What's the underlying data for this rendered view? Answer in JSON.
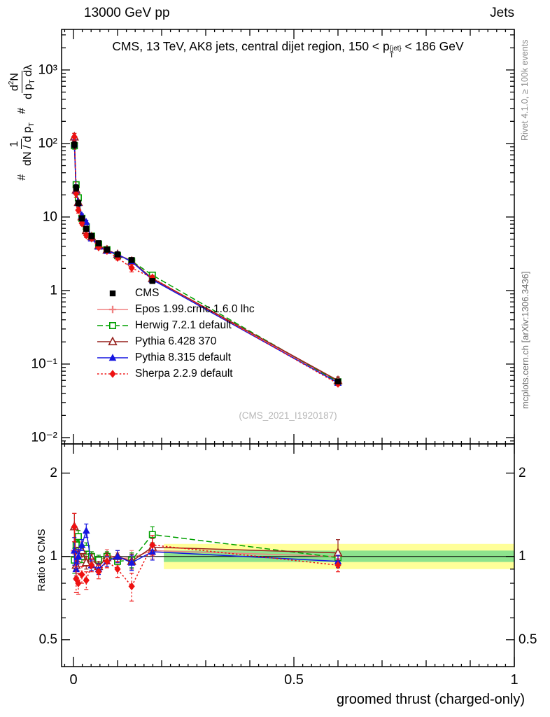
{
  "header": {
    "left": "13000 GeV pp",
    "right": "Jets"
  },
  "title_rich": [
    {
      "t": "CMS, 13 TeV, AK8 jets, central dijet region, 150 < p"
    },
    {
      "stack": [
        "{jet}",
        "T"
      ]
    },
    {
      "t": " < 186 GeV"
    }
  ],
  "ylabel_rich": [
    {
      "t": "# "
    },
    {
      "frac": {
        "num": [
          {
            "t": "1"
          }
        ],
        "den": [
          {
            "t": "dN / d p"
          },
          {
            "t": "T",
            "s": "sub"
          }
        ]
      }
    },
    {
      "t": " # "
    },
    {
      "frac": {
        "num": [
          {
            "t": "d"
          },
          {
            "t": "2",
            "s": "sup"
          },
          {
            "t": "N"
          }
        ],
        "den": [
          {
            "t": "d p"
          },
          {
            "t": "T",
            "s": "sub"
          },
          {
            "t": " dλ"
          }
        ]
      }
    }
  ],
  "ratio_ylabel": "Ratio to CMS",
  "xlabel": "groomed thrust (charged-only)",
  "watermark": "(CMS_2021_I1920187)",
  "side_notes": {
    "top": "Rivet 4.1.0, ≥ 100k events",
    "bottom": "mcplots.cern.ch [arXiv:1306.3436]"
  },
  "axes": {
    "x_ticks": [
      {
        "v": 0,
        "label": "0"
      },
      {
        "v": 0.5,
        "label": "0.5"
      },
      {
        "v": 1,
        "label": "1"
      }
    ],
    "main_y_ticks": [
      {
        "v": 1000,
        "label": "10³"
      },
      {
        "v": 100,
        "label": "10²"
      },
      {
        "v": 10,
        "label": "10"
      },
      {
        "v": 1,
        "label": "1"
      },
      {
        "v": 0.1,
        "label": "10⁻¹"
      },
      {
        "v": 0.01,
        "label": "10⁻²"
      }
    ],
    "ratio_y_ticks": [
      {
        "v": 2,
        "label": "2"
      },
      {
        "v": 1,
        "label": "1"
      },
      {
        "v": 0.5,
        "label": "0.5"
      }
    ]
  },
  "chart_data": {
    "type": "line",
    "title": "CMS, 13 TeV, AK8 jets, central dijet region, 150 < pT^{jet} < 186 GeV",
    "xlabel": "groomed thrust (charged-only)",
    "ylabel": "# 1/(dN/dpT) # d²N/(dpT dλ)",
    "x": [
      0.002,
      0.006,
      0.011,
      0.019,
      0.029,
      0.041,
      0.057,
      0.076,
      0.1,
      0.132,
      0.179,
      0.6
    ],
    "xlim": [
      -0.027,
      1.0
    ],
    "ylim": [
      0.0082,
      3560
    ],
    "ratio_ylim": [
      0.4,
      2.55
    ],
    "y_scale": "log",
    "ratio_y_scale": "log",
    "cms": {
      "name": "CMS",
      "color": "#000000",
      "marker": "square-filled",
      "values": [
        96,
        25,
        15.5,
        9.6,
        6.9,
        5.5,
        4.4,
        3.6,
        3.1,
        2.6,
        1.35,
        0.058
      ],
      "errors": [
        10,
        2.5,
        1.4,
        0.8,
        0.55,
        0.45,
        0.35,
        0.28,
        0.24,
        0.2,
        0.1,
        0.004
      ]
    },
    "series": [
      {
        "name": "Epos 1.99.crmc.1.6.0 lhc",
        "color": "#f08080",
        "line": "solid",
        "marker": "plus",
        "ratio": [
          1.05,
          1.02,
          0.95,
          1.08,
          0.97,
          1.0,
          0.95,
          1.02,
          0.98,
          0.99,
          1.05,
          1.0
        ],
        "ratio_err": [
          0.12,
          0.08,
          0.06,
          0.05,
          0.05,
          0.04,
          0.04,
          0.04,
          0.05,
          0.06,
          0.07,
          0.04
        ]
      },
      {
        "name": "Herwig 7.2.1 default",
        "color": "#00a000",
        "line": "dashed",
        "marker": "square-open",
        "ratio": [
          0.97,
          1.1,
          1.18,
          1.0,
          1.07,
          1.0,
          0.97,
          1.0,
          0.96,
          0.97,
          1.2,
          0.99
        ],
        "ratio_err": [
          0.1,
          0.08,
          0.06,
          0.05,
          0.05,
          0.04,
          0.04,
          0.04,
          0.05,
          0.06,
          0.08,
          0.03
        ]
      },
      {
        "name": "Pythia 6.428 370",
        "color": "#96201c",
        "line": "solid",
        "marker": "triangle-open",
        "ratio": [
          1.28,
          0.93,
          1.02,
          1.05,
          0.95,
          0.98,
          0.92,
          0.99,
          1.0,
          0.96,
          1.08,
          1.03
        ],
        "ratio_err": [
          0.15,
          0.08,
          0.06,
          0.05,
          0.05,
          0.04,
          0.04,
          0.04,
          0.05,
          0.06,
          0.08,
          0.12
        ]
      },
      {
        "name": "Pythia 8.315 default",
        "color": "#1515e0",
        "line": "solid",
        "marker": "triangle-filled",
        "ratio": [
          1.05,
          0.9,
          1.0,
          1.1,
          1.24,
          0.93,
          0.9,
          0.96,
          1.0,
          0.95,
          1.04,
          0.96
        ],
        "ratio_err": [
          0.12,
          0.08,
          0.06,
          0.05,
          0.07,
          0.04,
          0.04,
          0.04,
          0.05,
          0.06,
          0.07,
          0.05
        ]
      },
      {
        "name": "Sherpa 2.2.9 default",
        "color": "#ee1111",
        "line": "dotted",
        "marker": "diamond-filled",
        "ratio": [
          1.28,
          0.83,
          0.8,
          0.86,
          0.82,
          0.93,
          0.88,
          0.96,
          0.9,
          0.78,
          1.1,
          0.93
        ],
        "ratio_err": [
          0.15,
          0.09,
          0.07,
          0.06,
          0.06,
          0.05,
          0.05,
          0.05,
          0.06,
          0.09,
          0.09,
          0.05
        ]
      }
    ],
    "ratio_bands": {
      "x_from": 0.205,
      "x_to": 1.0,
      "yellow": [
        0.9,
        1.11
      ],
      "yellow_color": "#ffff99",
      "green": [
        0.955,
        1.05
      ],
      "green_color": "#8de38d"
    }
  }
}
